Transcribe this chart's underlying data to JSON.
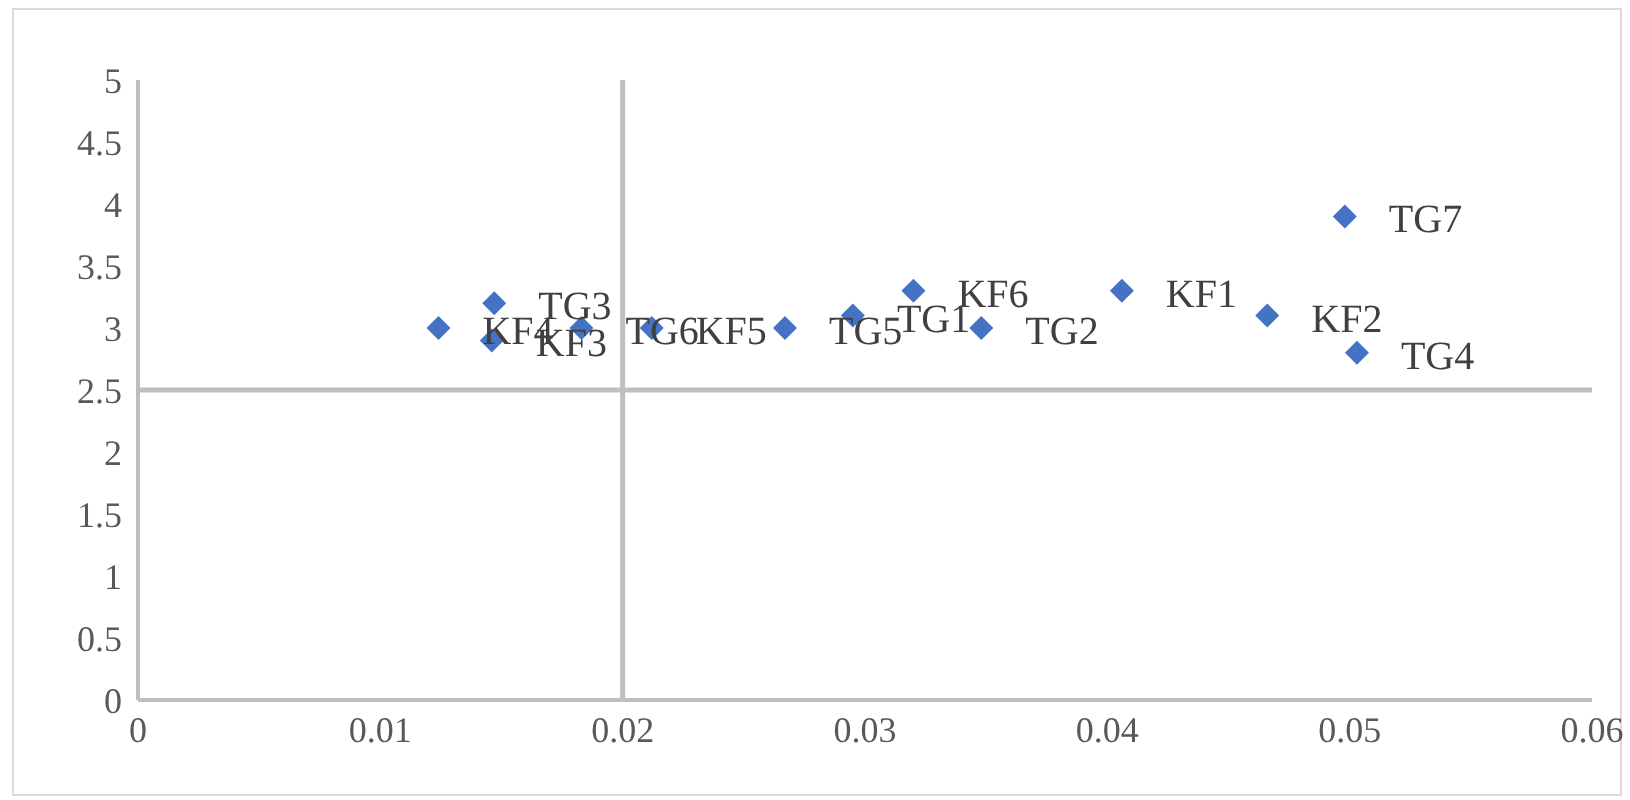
{
  "chart_data": {
    "type": "scatter",
    "x": [
      0.0124,
      0.0147,
      0.0146,
      0.0183,
      0.0212,
      0.0267,
      0.0295,
      0.032,
      0.0348,
      0.0406,
      0.0466,
      0.0498,
      0.0503
    ],
    "values": [
      3.0,
      3.2,
      2.9,
      3.0,
      3.0,
      3.0,
      3.1,
      3.3,
      3.0,
      3.3,
      3.1,
      3.9,
      2.8
    ],
    "color": "#4472c4",
    "marker": "diamond",
    "xlim": [
      0,
      0.06
    ],
    "xticks": [
      0,
      0.01,
      0.02,
      0.03,
      0.04,
      0.05,
      0.06
    ],
    "ylim": [
      0,
      5
    ],
    "yticks": [
      0,
      0.5,
      1,
      1.5,
      2,
      2.5,
      3,
      3.5,
      4,
      4.5,
      5
    ],
    "grid": false,
    "legend": false,
    "ref_lines": [
      {
        "axis": "x",
        "value": 0.02,
        "color": "#bfbfbf"
      },
      {
        "axis": "y",
        "value": 2.5,
        "color": "#bfbfbf"
      }
    ],
    "annotations": [
      {
        "text": "KF4",
        "x": 0.0124,
        "y": 3.0
      },
      {
        "text": "TG3",
        "x": 0.0147,
        "y": 3.2
      },
      {
        "text": "KF3",
        "x": 0.0146,
        "y": 2.9
      },
      {
        "text": "TG6",
        "x": 0.0183,
        "y": 3.0
      },
      {
        "text": "KF5",
        "x": 0.0212,
        "y": 3.0
      },
      {
        "text": "TG5",
        "x": 0.0267,
        "y": 3.0
      },
      {
        "text": "TG1",
        "x": 0.0295,
        "y": 3.1
      },
      {
        "text": "KF6",
        "x": 0.032,
        "y": 3.3
      },
      {
        "text": "TG2",
        "x": 0.0348,
        "y": 3.0
      },
      {
        "text": "KF1",
        "x": 0.0406,
        "y": 3.3
      },
      {
        "text": "KF2",
        "x": 0.0466,
        "y": 3.1
      },
      {
        "text": "TG7",
        "x": 0.0498,
        "y": 3.9
      },
      {
        "text": "TG4",
        "x": 0.0503,
        "y": 2.8
      }
    ]
  }
}
